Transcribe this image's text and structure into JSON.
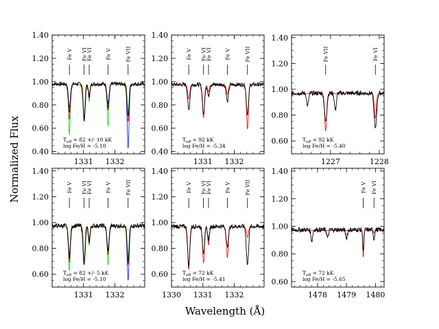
{
  "figure": {
    "ylabel": "Normalized Flux",
    "xlabel": "Wavelength (Å)"
  },
  "chart_data": [
    {
      "type": "line",
      "panel": "top-left",
      "xlim": [
        1330.0,
        1332.95
      ],
      "ylim": [
        0.38,
        1.4
      ],
      "xticks": [
        1331,
        1332
      ],
      "yticks": [
        0.4,
        0.6,
        0.8,
        1.0,
        1.2,
        1.4
      ],
      "ytick_labels": [
        "0.40",
        "0.60",
        "0.80",
        "1.00",
        "1.20",
        "1.40"
      ],
      "lines": [
        {
          "label": "Fe V",
          "x": 1330.55
        },
        {
          "label": "Fe VI",
          "x": 1331.02
        },
        {
          "label": "Fe VI",
          "x": 1331.18
        },
        {
          "label": "Fe V",
          "x": 1331.78
        },
        {
          "label": "Fe VII",
          "x": 1332.42
        }
      ],
      "annotation": {
        "teff_value": "= 82 +/- 10 kK",
        "logfe": "log Fe/H = -5.10"
      },
      "series": [
        {
          "color": "#000000",
          "continuum": 0.98,
          "absorption": [
            [
              1330.55,
              0.24,
              0.035
            ],
            [
              1331.02,
              0.3,
              0.035
            ],
            [
              1331.18,
              0.1,
              0.03
            ],
            [
              1331.78,
              0.2,
              0.035
            ],
            [
              1332.42,
              0.28,
              0.035
            ]
          ]
        },
        {
          "color": "#e21a1a",
          "continuum": 0.975,
          "absorption": [
            [
              1330.55,
              0.3,
              0.03
            ],
            [
              1331.02,
              0.32,
              0.03
            ],
            [
              1331.18,
              0.12,
              0.025
            ],
            [
              1331.78,
              0.22,
              0.03
            ],
            [
              1332.42,
              0.32,
              0.03
            ]
          ]
        },
        {
          "color": "#1fd21f",
          "continuum": 0.975,
          "absorption": [
            [
              1330.55,
              0.44,
              0.025
            ],
            [
              1331.02,
              0.3,
              0.025
            ],
            [
              1331.18,
              0.15,
              0.02
            ],
            [
              1331.78,
              0.36,
              0.025
            ],
            [
              1332.42,
              0.26,
              0.025
            ]
          ]
        },
        {
          "color": "#1a2de0",
          "continuum": 0.975,
          "absorption": [
            [
              1330.55,
              0.2,
              0.03
            ],
            [
              1331.02,
              0.28,
              0.03
            ],
            [
              1331.18,
              0.09,
              0.025
            ],
            [
              1331.78,
              0.16,
              0.03
            ],
            [
              1332.42,
              0.55,
              0.03
            ]
          ]
        }
      ]
    },
    {
      "type": "line",
      "panel": "top-middle",
      "xlim": [
        1330.0,
        1332.95
      ],
      "ylim": [
        0.38,
        1.4
      ],
      "xticks": [
        1331,
        1332
      ],
      "yticks": [
        0.4,
        0.6,
        0.8,
        1.0,
        1.2,
        1.4
      ],
      "ytick_labels": [
        "0.40",
        "0.60",
        "0.80",
        "1.00",
        "1.20",
        "1.40"
      ],
      "lines": [
        {
          "label": "Fe V",
          "x": 1330.55
        },
        {
          "label": "Fe VI",
          "x": 1331.02
        },
        {
          "label": "Fe VI",
          "x": 1331.18
        },
        {
          "label": "Fe V",
          "x": 1331.78
        },
        {
          "label": "Fe VII",
          "x": 1332.42
        }
      ],
      "annotation": {
        "teff_value": "= 92 kK",
        "logfe": "log Fe/H = -5.34"
      },
      "series": [
        {
          "color": "#000000",
          "continuum": 0.975,
          "absorption": [
            [
              1330.55,
              0.22,
              0.035
            ],
            [
              1331.02,
              0.26,
              0.035
            ],
            [
              1331.18,
              0.1,
              0.03
            ],
            [
              1331.78,
              0.15,
              0.035
            ],
            [
              1332.42,
              0.25,
              0.035
            ]
          ]
        },
        {
          "color": "#e21a1a",
          "continuum": 0.97,
          "absorption": [
            [
              1330.55,
              0.12,
              0.03
            ],
            [
              1331.02,
              0.28,
              0.03
            ],
            [
              1331.18,
              0.06,
              0.025
            ],
            [
              1331.78,
              0.08,
              0.03
            ],
            [
              1332.42,
              0.38,
              0.03
            ]
          ]
        }
      ]
    },
    {
      "type": "line",
      "panel": "top-right",
      "xlim": [
        1226.2,
        1228.1
      ],
      "ylim": [
        0.5,
        1.42
      ],
      "xticks": [
        1227,
        1228
      ],
      "yticks": [
        0.6,
        0.8,
        1.0,
        1.2,
        1.4
      ],
      "ytick_labels": [
        "0.60",
        "0.80",
        "1.00",
        "1.20",
        "1.40"
      ],
      "lines": [
        {
          "label": "Fe VII",
          "x": 1226.9
        },
        {
          "label": "Fe VI",
          "x": 1227.92
        }
      ],
      "annotation": {
        "teff_value": "= 92 kK",
        "logfe": "log Fe/H = -5.40"
      },
      "series": [
        {
          "color": "#000000",
          "continuum": 0.97,
          "absorption": [
            [
              1226.53,
              0.1,
              0.02
            ],
            [
              1226.9,
              0.22,
              0.025
            ],
            [
              1227.1,
              0.13,
              0.02
            ],
            [
              1227.92,
              0.28,
              0.025
            ]
          ]
        },
        {
          "color": "#e21a1a",
          "continuum": 0.965,
          "absorption": [
            [
              1226.9,
              0.29,
              0.02
            ],
            [
              1227.92,
              0.19,
              0.02
            ]
          ]
        }
      ]
    },
    {
      "type": "line",
      "panel": "bottom-left",
      "xlim": [
        1330.0,
        1332.95
      ],
      "ylim": [
        0.5,
        1.42
      ],
      "xticks": [
        1331,
        1332
      ],
      "yticks": [
        0.6,
        0.8,
        1.0,
        1.2,
        1.4
      ],
      "ytick_labels": [
        "0.60",
        "0.80",
        "1.00",
        "1.20",
        "1.40"
      ],
      "lines": [
        {
          "label": "Fe V",
          "x": 1330.55
        },
        {
          "label": "Fe VI",
          "x": 1331.02
        },
        {
          "label": "Fe VI",
          "x": 1331.18
        },
        {
          "label": "Fe V",
          "x": 1331.78
        },
        {
          "label": "Fe VII",
          "x": 1332.42
        }
      ],
      "annotation": {
        "teff_value": "= 82 +/- 5 kK",
        "logfe": "log Fe/H = -5.10"
      },
      "series": [
        {
          "color": "#000000",
          "continuum": 0.975,
          "absorption": [
            [
              1330.55,
              0.24,
              0.035
            ],
            [
              1331.02,
              0.3,
              0.035
            ],
            [
              1331.18,
              0.12,
              0.03
            ],
            [
              1331.78,
              0.2,
              0.035
            ],
            [
              1332.42,
              0.28,
              0.035
            ]
          ]
        },
        {
          "color": "#e21a1a",
          "continuum": 0.97,
          "absorption": [
            [
              1330.55,
              0.28,
              0.03
            ],
            [
              1331.02,
              0.3,
              0.03
            ],
            [
              1331.18,
              0.13,
              0.025
            ],
            [
              1331.78,
              0.22,
              0.03
            ],
            [
              1332.42,
              0.3,
              0.03
            ]
          ]
        },
        {
          "color": "#1fd21f",
          "continuum": 0.97,
          "absorption": [
            [
              1330.55,
              0.35,
              0.025
            ],
            [
              1331.02,
              0.28,
              0.025
            ],
            [
              1331.18,
              0.15,
              0.02
            ],
            [
              1331.78,
              0.3,
              0.025
            ],
            [
              1332.42,
              0.26,
              0.025
            ]
          ]
        },
        {
          "color": "#1a2de0",
          "continuum": 0.97,
          "absorption": [
            [
              1330.55,
              0.22,
              0.03
            ],
            [
              1331.02,
              0.26,
              0.03
            ],
            [
              1331.18,
              0.1,
              0.025
            ],
            [
              1331.78,
              0.18,
              0.03
            ],
            [
              1332.42,
              0.42,
              0.03
            ]
          ]
        }
      ]
    },
    {
      "type": "line",
      "panel": "bottom-middle",
      "xlim": [
        1330.0,
        1332.95
      ],
      "ylim": [
        0.5,
        1.42
      ],
      "xticks": [
        1330,
        1331,
        1332
      ],
      "yticks": [
        0.6,
        0.8,
        1.0,
        1.2,
        1.4
      ],
      "ytick_labels": [
        "0.60",
        "0.80",
        "1.00",
        "1.20",
        "1.40"
      ],
      "lines": [
        {
          "label": "Fe V",
          "x": 1330.55
        },
        {
          "label": "Fe VI",
          "x": 1331.02
        },
        {
          "label": "Fe VI",
          "x": 1331.18
        },
        {
          "label": "Fe V",
          "x": 1331.78
        },
        {
          "label": "Fe VII",
          "x": 1332.42
        }
      ],
      "annotation": {
        "teff_value": "= 72 kK",
        "logfe": "log Fe/H = -5.41"
      },
      "series": [
        {
          "color": "#000000",
          "continuum": 0.97,
          "absorption": [
            [
              1330.55,
              0.3,
              0.035
            ],
            [
              1331.02,
              0.2,
              0.035
            ],
            [
              1331.18,
              0.1,
              0.03
            ],
            [
              1331.78,
              0.16,
              0.035
            ],
            [
              1332.42,
              0.3,
              0.035
            ]
          ]
        },
        {
          "color": "#e21a1a",
          "continuum": 0.965,
          "absorption": [
            [
              1330.55,
              0.33,
              0.03
            ],
            [
              1331.02,
              0.28,
              0.03
            ],
            [
              1331.18,
              0.14,
              0.025
            ],
            [
              1331.78,
              0.24,
              0.03
            ],
            [
              1332.42,
              0.08,
              0.03
            ]
          ]
        }
      ]
    },
    {
      "type": "line",
      "panel": "bottom-right",
      "xlim": [
        1477.1,
        1480.3
      ],
      "ylim": [
        0.56,
        1.42
      ],
      "xticks": [
        1478,
        1479,
        1480
      ],
      "yticks": [
        0.6,
        0.8,
        1.0,
        1.2,
        1.4
      ],
      "ytick_labels": [
        "0.60",
        "0.80",
        "1.00",
        "1.20",
        "1.40"
      ],
      "lines": [
        {
          "label": "Fe V",
          "x": 1479.58
        },
        {
          "label": "Fe VI",
          "x": 1479.95
        }
      ],
      "annotation": {
        "teff_value": "= 72 kK",
        "logfe": "log Fe/H = -5.65"
      },
      "series": [
        {
          "color": "#000000",
          "continuum": 0.975,
          "absorption": [
            [
              1477.8,
              0.08,
              0.03
            ],
            [
              1478.35,
              0.06,
              0.03
            ],
            [
              1479.0,
              0.06,
              0.03
            ],
            [
              1479.58,
              0.15,
              0.02
            ],
            [
              1479.95,
              0.07,
              0.02
            ]
          ]
        },
        {
          "color": "#e21a1a",
          "continuum": 0.97,
          "absorption": [
            [
              1479.58,
              0.2,
              0.018
            ],
            [
              1479.95,
              0.02,
              0.015
            ]
          ]
        }
      ]
    }
  ]
}
